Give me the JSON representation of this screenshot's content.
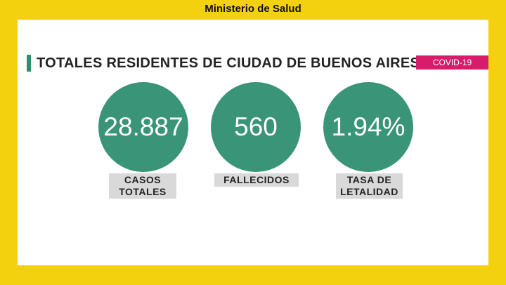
{
  "header": {
    "title": "Ministerio de Salud"
  },
  "panel": {
    "title": "TOTALES RESIDENTES DE CIUDAD DE BUENOS AIRES",
    "badge": "COVID-19",
    "stats": [
      {
        "value": "28.887",
        "label": [
          "CASOS",
          "TOTALES"
        ]
      },
      {
        "value": "560",
        "label": [
          "FALLECIDOS"
        ]
      },
      {
        "value": "1.94%",
        "label": [
          "TASA DE",
          "LETALIDAD"
        ]
      }
    ]
  }
}
